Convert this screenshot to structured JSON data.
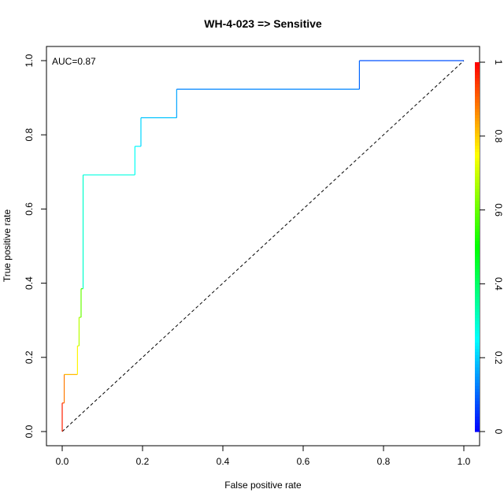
{
  "chart_data": {
    "type": "line",
    "title": "WH-4-023 => Sensitive",
    "xlabel": "False positive rate",
    "ylabel": "True positive rate",
    "xlim": [
      0,
      1
    ],
    "ylim": [
      0,
      1
    ],
    "xticks": [
      "0.0",
      "0.2",
      "0.4",
      "0.6",
      "0.8",
      "1.0"
    ],
    "yticks": [
      "0.0",
      "0.2",
      "0.4",
      "0.6",
      "0.8",
      "1.0"
    ],
    "grid": false,
    "annotation": "AUC=0.87",
    "roc_curve": {
      "fpr": [
        0,
        0,
        0.005,
        0.005,
        0.038,
        0.038,
        0.042,
        0.042,
        0.047,
        0.047,
        0.052,
        0.052,
        0.181,
        0.181,
        0.196,
        0.196,
        0.285,
        0.285,
        0.74,
        0.74,
        1.0
      ],
      "tpr": [
        0,
        0.077,
        0.077,
        0.154,
        0.154,
        0.231,
        0.231,
        0.308,
        0.308,
        0.385,
        0.385,
        0.692,
        0.692,
        0.769,
        0.769,
        0.846,
        0.846,
        0.923,
        0.923,
        1.0,
        1.0
      ],
      "cutoff": [
        1.0,
        0.97,
        0.93,
        0.88,
        0.82,
        0.76,
        0.72,
        0.68,
        0.64,
        0.6,
        0.56,
        0.3,
        0.28,
        0.26,
        0.24,
        0.21,
        0.19,
        0.16,
        0.13,
        0.1,
        0.08
      ]
    },
    "diagonal": {
      "x": [
        0,
        1
      ],
      "y": [
        0,
        1
      ],
      "style": "dashed"
    },
    "colorbar": {
      "range": [
        0,
        1
      ],
      "ticks": [
        "0",
        "0.2",
        "0.4",
        "0.6",
        "0.8",
        "1"
      ],
      "palette": "rainbow (blue at 0 to red at 1)"
    }
  }
}
